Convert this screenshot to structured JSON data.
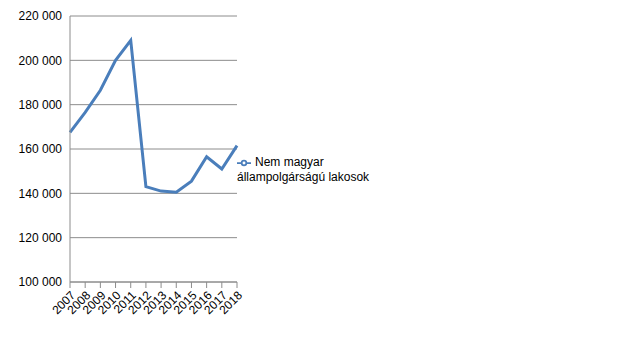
{
  "chart_data": {
    "type": "line",
    "categories": [
      "2007",
      "2008",
      "2009",
      "2010",
      "2011",
      "2012",
      "2013",
      "2014",
      "2015",
      "2016",
      "2017",
      "2018"
    ],
    "series": [
      {
        "name": "Nem magyar állampolgárságú lakosok",
        "color": "#4a7ebb",
        "values": [
          167500,
          176500,
          186500,
          200000,
          209000,
          143000,
          141000,
          140500,
          145500,
          156500,
          151000,
          161500
        ]
      }
    ],
    "ylim": [
      100000,
      220000
    ],
    "yticks": [
      {
        "value": 100000,
        "label": "100 000"
      },
      {
        "value": 120000,
        "label": "120 000"
      },
      {
        "value": 140000,
        "label": "140 000"
      },
      {
        "value": 160000,
        "label": "160 000"
      },
      {
        "value": 180000,
        "label": "180 000"
      },
      {
        "value": 200000,
        "label": "200 000"
      },
      {
        "value": 220000,
        "label": "220 000"
      }
    ],
    "grid": true,
    "legend": "right"
  }
}
